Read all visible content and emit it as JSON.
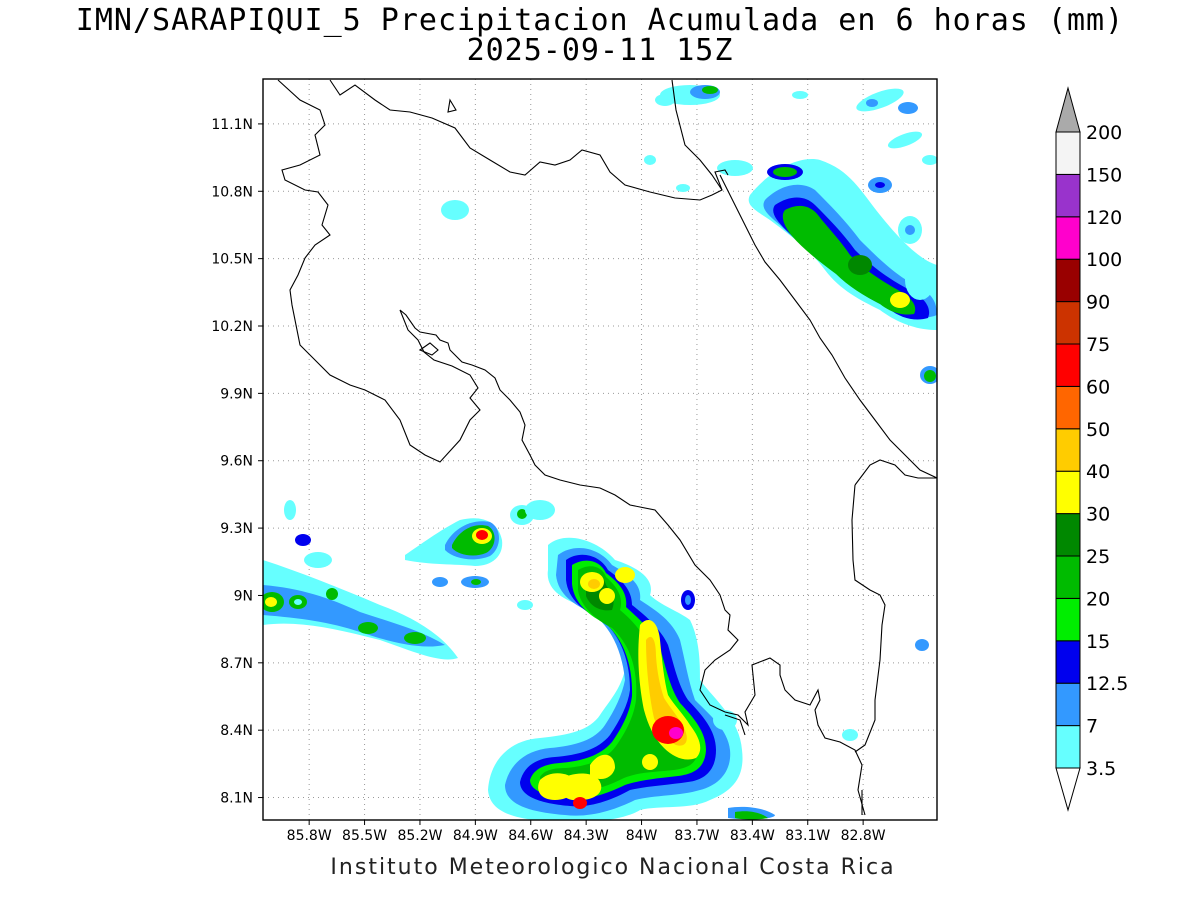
{
  "title": {
    "line1": "IMN/SARAPIQUI_5 Precipitacion Acumulada en 6 horas (mm)",
    "line2": "2025-09-11 15Z"
  },
  "credit": "Instituto Meteorologico Nacional Costa Rica",
  "map": {
    "lon_range": [
      -86.05,
      -82.4
    ],
    "lat_range": [
      8.0,
      11.3
    ],
    "grid": true,
    "x_ticks": [
      "85.8W",
      "85.5W",
      "85.2W",
      "84.9W",
      "84.6W",
      "84.3W",
      "84W",
      "83.7W",
      "83.4W",
      "83.1W",
      "82.8W"
    ],
    "y_ticks": [
      "11.1N",
      "10.8N",
      "10.5N",
      "10.2N",
      "9.9N",
      "9.6N",
      "9.3N",
      "9N",
      "8.7N",
      "8.4N",
      "8.1N"
    ]
  },
  "colorbar": {
    "labels": [
      "3.5",
      "7",
      "12.5",
      "15",
      "20",
      "25",
      "30",
      "40",
      "50",
      "60",
      "75",
      "90",
      "100",
      "120",
      "150",
      "200"
    ],
    "colors": [
      "#66ffff",
      "#3399ff",
      "#0000ee",
      "#00ee00",
      "#00bb00",
      "#008800",
      "#ffff00",
      "#ffcc00",
      "#ff6600",
      "#ff0000",
      "#cc3300",
      "#990000",
      "#ff00cc",
      "#9933cc",
      "#f4f4f4"
    ],
    "over_color": "#aaaaaa",
    "under_color": "#ffffff"
  }
}
